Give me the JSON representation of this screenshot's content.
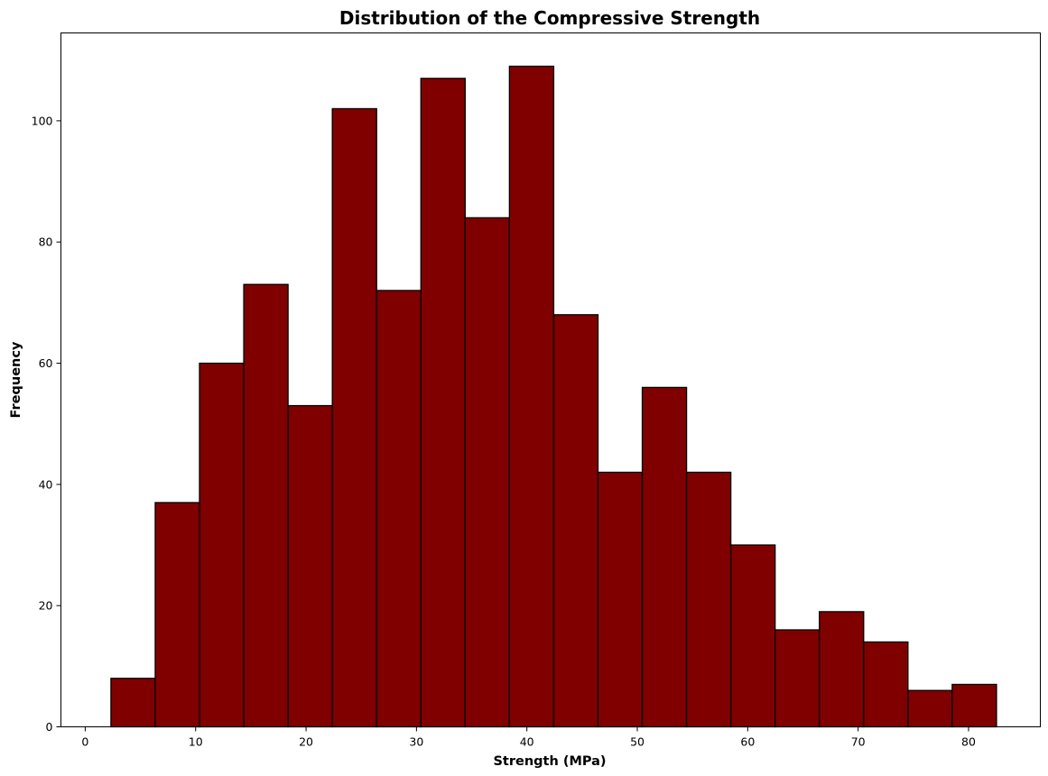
{
  "chart_data": {
    "type": "bar",
    "title": "Distribution of the Compressive Strength",
    "xlabel": "Strength (MPa)",
    "ylabel": "Frequency",
    "bins": [
      {
        "start": 2.33,
        "end": 6.34,
        "count": 8
      },
      {
        "start": 6.34,
        "end": 10.35,
        "count": 37
      },
      {
        "start": 10.35,
        "end": 14.36,
        "count": 60
      },
      {
        "start": 14.36,
        "end": 18.37,
        "count": 73
      },
      {
        "start": 18.37,
        "end": 22.38,
        "count": 53
      },
      {
        "start": 22.38,
        "end": 26.39,
        "count": 102
      },
      {
        "start": 26.39,
        "end": 30.4,
        "count": 72
      },
      {
        "start": 30.4,
        "end": 34.41,
        "count": 107
      },
      {
        "start": 34.41,
        "end": 38.42,
        "count": 84
      },
      {
        "start": 38.42,
        "end": 42.43,
        "count": 109
      },
      {
        "start": 42.43,
        "end": 46.44,
        "count": 68
      },
      {
        "start": 46.44,
        "end": 50.45,
        "count": 42
      },
      {
        "start": 50.45,
        "end": 54.46,
        "count": 56
      },
      {
        "start": 54.46,
        "end": 58.47,
        "count": 42
      },
      {
        "start": 58.47,
        "end": 62.48,
        "count": 30
      },
      {
        "start": 62.48,
        "end": 66.49,
        "count": 16
      },
      {
        "start": 66.49,
        "end": 70.5,
        "count": 19
      },
      {
        "start": 70.5,
        "end": 74.51,
        "count": 14
      },
      {
        "start": 74.51,
        "end": 78.52,
        "count": 6
      },
      {
        "start": 78.52,
        "end": 82.53,
        "count": 7
      }
    ],
    "xlim": [
      -2.2,
      86.5
    ],
    "ylim": [
      0,
      114.5
    ],
    "xticks": [
      0,
      10,
      20,
      30,
      40,
      50,
      60,
      70,
      80
    ],
    "yticks": [
      0,
      20,
      40,
      60,
      80,
      100
    ],
    "bar_color": "#800000",
    "edge_color": "#000000",
    "grid": false,
    "legend": "none"
  }
}
